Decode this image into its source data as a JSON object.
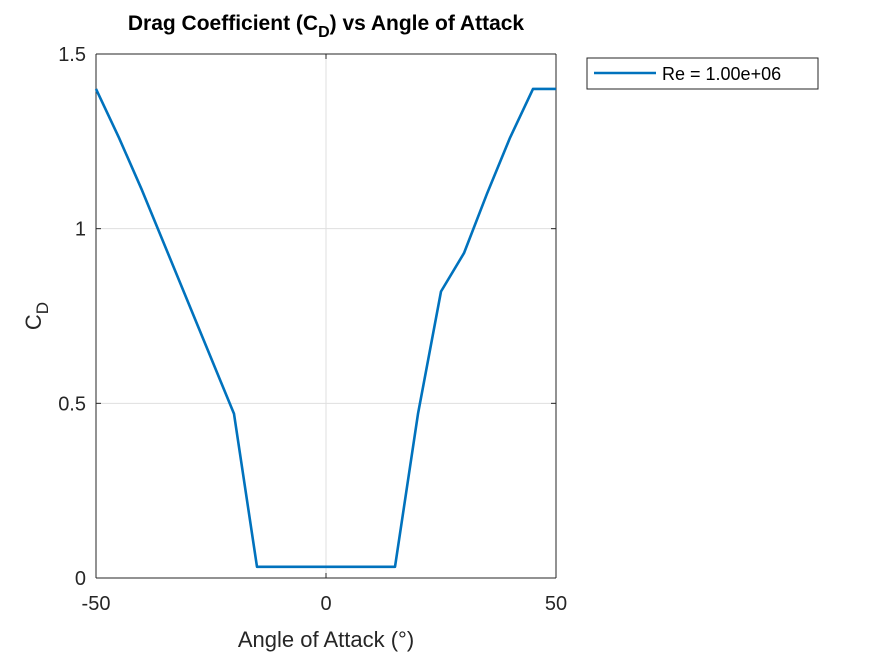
{
  "chart_data": {
    "type": "line",
    "title": "Drag Coefficient (C",
    "title_sub": "D",
    "title_suffix": ") vs Angle of Attack",
    "xlabel": "Angle of Attack (°)",
    "ylabel": "C",
    "ylabel_sub": "D",
    "xlim": [
      -50,
      50
    ],
    "ylim": [
      0,
      1.5
    ],
    "xticks": [
      -50,
      0,
      50
    ],
    "xtick_labels": [
      "-50",
      "0",
      "50"
    ],
    "yticks": [
      0,
      0.5,
      1,
      1.5
    ],
    "ytick_labels": [
      "0",
      "0.5",
      "1",
      "1.5"
    ],
    "grid": true,
    "legend_position": "outside-top-right",
    "series": [
      {
        "name": "Re = 1.00e+06",
        "color": "#0072bd",
        "x": [
          -50,
          -45,
          -40,
          -35,
          -30,
          -25,
          -20,
          -15,
          -10,
          -5,
          0,
          5,
          10,
          15,
          20,
          25,
          30,
          35,
          40,
          45,
          50
        ],
        "y": [
          1.4,
          1.26,
          1.11,
          0.95,
          0.79,
          0.63,
          0.47,
          0.032,
          0.032,
          0.032,
          0.032,
          0.032,
          0.032,
          0.032,
          0.47,
          0.82,
          0.93,
          1.1,
          1.26,
          1.4,
          1.4
        ]
      }
    ]
  }
}
